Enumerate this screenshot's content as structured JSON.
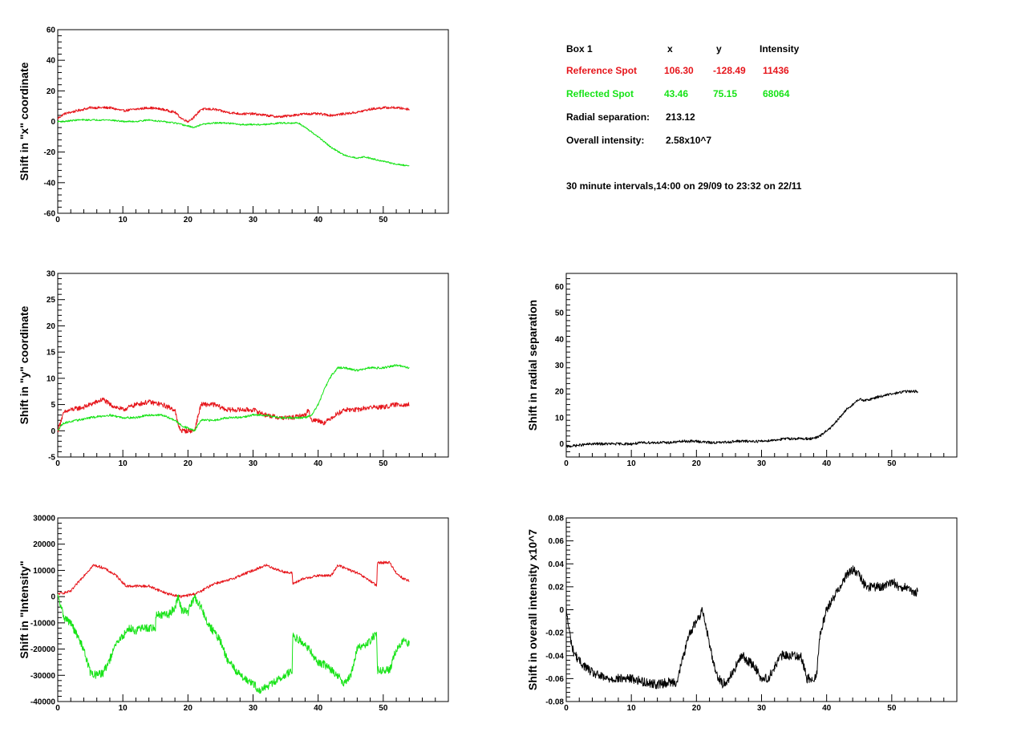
{
  "info_box": {
    "title": "Box 1",
    "col_x": "x",
    "col_y": "y",
    "col_intensity": "Intensity",
    "reference": {
      "label": "Reference Spot",
      "x": "106.30",
      "y": "-128.49",
      "intensity": "11436",
      "color": "#e6151b"
    },
    "reflected": {
      "label": "Reflected Spot",
      "x": "43.46",
      "y": "75.15",
      "intensity": "68064",
      "color": "#17e317"
    },
    "radial_label": "Radial separation:",
    "radial_value": "213.12",
    "overall_label": "Overall intensity:",
    "overall_value": "2.58x10^7",
    "interval_note": "30 minute intervals,14:00 on 29/09 to 23:32 on 22/11"
  },
  "chart_data": [
    {
      "id": "x-shift",
      "type": "line",
      "title": "",
      "xlabel": "",
      "ylabel": "Shift in \"x\" coordinate",
      "xlim": [
        0,
        60
      ],
      "ylim": [
        -60,
        60
      ],
      "xticks": [
        0,
        10,
        20,
        30,
        40,
        50
      ],
      "yticks": [
        -60,
        -40,
        -20,
        0,
        20,
        40,
        60
      ],
      "grid": false,
      "series": [
        {
          "color": "#e6151b",
          "noise": 0.8,
          "x": [
            0,
            1,
            3,
            5,
            8,
            10,
            12,
            14,
            16,
            18,
            19,
            20,
            21,
            22,
            24,
            26,
            28,
            30,
            32,
            34,
            36,
            38,
            40,
            42,
            44,
            46,
            48,
            50,
            52,
            54
          ],
          "y": [
            2,
            5,
            7,
            9,
            9,
            7,
            8,
            9,
            8,
            6,
            2,
            0,
            3,
            8,
            8,
            6,
            5,
            5,
            4,
            3,
            4,
            5,
            5,
            4,
            5,
            6,
            8,
            9,
            9,
            8
          ]
        },
        {
          "color": "#17e317",
          "noise": 0.5,
          "x": [
            0,
            1,
            3,
            5,
            8,
            10,
            12,
            14,
            16,
            18,
            19,
            20,
            21,
            22,
            24,
            26,
            28,
            30,
            32,
            34,
            36,
            37,
            38,
            40,
            42,
            44,
            46,
            47,
            48,
            50,
            52,
            54
          ],
          "y": [
            0,
            0,
            1,
            1,
            1,
            0,
            0,
            1,
            0,
            -1,
            -2,
            -3,
            -4,
            -2,
            -1,
            -1,
            -2,
            -2,
            -2,
            -1,
            -1,
            -1,
            -4,
            -10,
            -17,
            -22,
            -24,
            -23,
            -24,
            -26,
            -28,
            -29
          ]
        }
      ]
    },
    {
      "id": "y-shift",
      "type": "line",
      "title": "",
      "xlabel": "",
      "ylabel": "Shift in \"y\" coordinate",
      "xlim": [
        0,
        60
      ],
      "ylim": [
        -5,
        30
      ],
      "xticks": [
        0,
        10,
        20,
        30,
        40,
        50
      ],
      "yticks": [
        -5,
        0,
        5,
        10,
        15,
        20,
        25,
        30
      ],
      "grid": false,
      "series": [
        {
          "color": "#e6151b",
          "noise": 0.45,
          "x": [
            0,
            0.5,
            1,
            2,
            4,
            6,
            7,
            8,
            10,
            12,
            14,
            16,
            18,
            18.5,
            19,
            20,
            21,
            22,
            24,
            26,
            28,
            30,
            32,
            34,
            36,
            38,
            38.5,
            39,
            40,
            41,
            42,
            44,
            46,
            48,
            50,
            52,
            54
          ],
          "y": [
            0,
            2,
            3.5,
            4,
            4.5,
            5.5,
            6,
            5,
            4,
            5,
            5.5,
            5,
            4,
            1,
            0,
            0,
            0,
            5,
            5,
            4,
            4,
            4,
            3,
            2.5,
            2.5,
            3,
            4,
            2,
            2,
            1.5,
            2.5,
            4,
            4,
            4.5,
            4.5,
            5,
            5
          ]
        },
        {
          "color": "#17e317",
          "noise": 0.2,
          "x": [
            0,
            0.5,
            1,
            3,
            5,
            8,
            10,
            12,
            14,
            16,
            18,
            19,
            20,
            21,
            22,
            24,
            26,
            28,
            30,
            32,
            34,
            36,
            38,
            39,
            40,
            41,
            42,
            43,
            44,
            46,
            48,
            50,
            52,
            54
          ],
          "y": [
            0,
            1,
            1.5,
            2,
            2.5,
            3,
            2.5,
            2.5,
            3,
            3,
            2,
            1,
            0.5,
            0,
            2,
            2,
            2.5,
            2.5,
            3,
            3,
            2.5,
            2.5,
            2.5,
            3,
            5,
            8,
            10.5,
            12,
            12,
            11.5,
            12,
            12,
            12.5,
            12
          ]
        }
      ]
    },
    {
      "id": "intensity-shift",
      "type": "line",
      "title": "",
      "xlabel": "",
      "ylabel": "Shift in \"Intensity\"",
      "xlim": [
        0,
        60
      ],
      "ylim": [
        -40000,
        30000
      ],
      "xticks": [
        0,
        10,
        20,
        30,
        40,
        50
      ],
      "yticks": [
        -40000,
        -30000,
        -20000,
        -10000,
        0,
        10000,
        20000,
        30000
      ],
      "grid": false,
      "series": [
        {
          "color": "#e6151b",
          "noise": 500,
          "x": [
            0,
            2,
            4,
            5.5,
            7,
            9,
            10.5,
            12,
            14,
            15,
            17,
            19,
            21,
            22,
            24,
            26,
            28,
            30,
            32,
            34,
            35.5,
            36,
            36.1,
            38,
            40,
            42,
            43,
            44,
            46,
            48,
            49,
            49.1,
            51,
            52,
            53,
            54
          ],
          "y": [
            1000,
            2000,
            8000,
            12000,
            11000,
            8000,
            4000,
            4000,
            4000,
            3000,
            1000,
            0,
            1000,
            2000,
            5000,
            6000,
            8000,
            10000,
            12000,
            10000,
            9000,
            9000,
            5000,
            7000,
            8000,
            8000,
            12000,
            11000,
            9000,
            6000,
            4000,
            13000,
            13000,
            9000,
            7000,
            6000
          ]
        },
        {
          "color": "#17e317",
          "noise": 1500,
          "x": [
            0,
            1,
            2,
            4,
            5,
            6,
            7,
            8,
            9,
            10,
            11,
            12,
            13,
            15,
            15.1,
            17,
            18,
            18.5,
            19,
            20,
            21,
            22,
            23,
            25,
            26,
            28,
            30,
            31,
            33,
            35,
            36,
            36.1,
            38,
            40,
            41,
            42,
            43,
            44,
            45,
            46,
            48,
            48.5,
            49,
            49.1,
            50,
            51,
            52,
            53,
            54
          ],
          "y": [
            0,
            -8000,
            -10000,
            -20000,
            -29000,
            -30000,
            -29000,
            -24000,
            -18000,
            -15000,
            -12000,
            -13000,
            -12000,
            -12000,
            -7000,
            -7000,
            -4000,
            0,
            -5000,
            -6000,
            0,
            -4000,
            -10000,
            -17000,
            -24000,
            -30000,
            -33000,
            -36000,
            -33000,
            -30000,
            -28000,
            -15000,
            -18000,
            -25000,
            -26000,
            -28000,
            -30000,
            -33000,
            -30000,
            -20000,
            -17000,
            -15000,
            -15000,
            -28000,
            -28000,
            -28000,
            -20000,
            -17000,
            -18000
          ]
        }
      ]
    },
    {
      "id": "radial-shift",
      "type": "line",
      "title": "",
      "xlabel": "",
      "ylabel": "Shift in radial separation",
      "xlim": [
        0,
        60
      ],
      "ylim": [
        -5,
        65
      ],
      "xticks": [
        0,
        10,
        20,
        30,
        40,
        50
      ],
      "yticks": [
        0,
        10,
        20,
        30,
        40,
        50,
        60
      ],
      "grid": false,
      "series": [
        {
          "color": "#000000",
          "noise": 0.5,
          "x": [
            0,
            2,
            4,
            6,
            8,
            10,
            12,
            14,
            16,
            18,
            20,
            22,
            24,
            26,
            28,
            30,
            32,
            34,
            36,
            38,
            39,
            40,
            41,
            42,
            43,
            44,
            45,
            46,
            48,
            50,
            52,
            54
          ],
          "y": [
            -1,
            -0.5,
            0,
            0,
            0,
            0,
            0.5,
            0.5,
            0.5,
            1,
            1,
            0.5,
            0.5,
            1,
            1,
            1,
            1.5,
            2,
            2,
            2,
            3,
            5,
            7,
            10,
            13,
            15,
            17,
            16.5,
            18,
            19,
            20,
            20
          ]
        }
      ]
    },
    {
      "id": "overall-intensity-shift",
      "type": "line",
      "title": "",
      "xlabel": "",
      "ylabel": "Shift in overall intensity x10^7",
      "xlim": [
        0,
        60
      ],
      "ylim": [
        -0.08,
        0.08
      ],
      "xticks": [
        0,
        10,
        20,
        30,
        40,
        50
      ],
      "yticks": [
        -0.08,
        -0.06,
        -0.04,
        -0.02,
        0,
        0.02,
        0.04,
        0.06,
        0.08
      ],
      "grid": false,
      "series": [
        {
          "color": "#000000",
          "noise": 0.004,
          "x": [
            0,
            0.5,
            1,
            2,
            3,
            4,
            6,
            8,
            10,
            12,
            14,
            16,
            17,
            18,
            19,
            20,
            21,
            22,
            23,
            24,
            25,
            26,
            27,
            28,
            29,
            30,
            31,
            32,
            33,
            34,
            35,
            36,
            37,
            38,
            38.5,
            39,
            40,
            41,
            42,
            43,
            44,
            45,
            46,
            47,
            48,
            49,
            50,
            51,
            52,
            53,
            54
          ],
          "y": [
            0,
            -0.02,
            -0.035,
            -0.045,
            -0.05,
            -0.055,
            -0.06,
            -0.06,
            -0.06,
            -0.063,
            -0.065,
            -0.063,
            -0.063,
            -0.04,
            -0.02,
            -0.01,
            0,
            -0.03,
            -0.055,
            -0.065,
            -0.06,
            -0.05,
            -0.04,
            -0.045,
            -0.05,
            -0.06,
            -0.06,
            -0.05,
            -0.04,
            -0.04,
            -0.04,
            -0.04,
            -0.06,
            -0.06,
            -0.055,
            -0.02,
            0,
            0.01,
            0.02,
            0.03,
            0.035,
            0.03,
            0.02,
            0.02,
            0.02,
            0.02,
            0.025,
            0.02,
            0.02,
            0.015,
            0.015
          ]
        }
      ]
    }
  ]
}
